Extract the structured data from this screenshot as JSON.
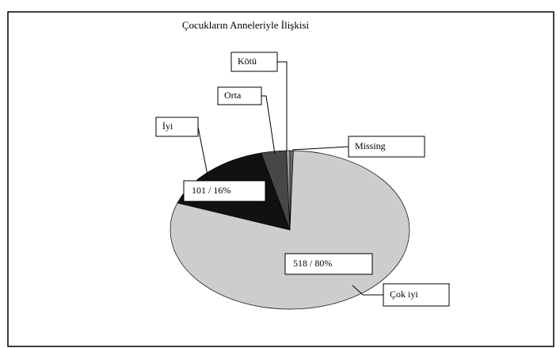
{
  "chart_data": {
    "type": "pie",
    "title": "Çocukların Anneleriyle İlişkisi",
    "categories": [
      "Missing",
      "Çok iyi",
      "İyi",
      "Orta",
      "Kötü"
    ],
    "values": [
      3,
      518,
      101,
      22,
      3
    ],
    "value_labels": [
      null,
      "518 / 80%",
      "101 / 16%",
      null,
      null
    ],
    "colors": [
      "#6e6e6e",
      "#cdcdcd",
      "#111111",
      "#474747",
      "#9a9a9a"
    ]
  }
}
